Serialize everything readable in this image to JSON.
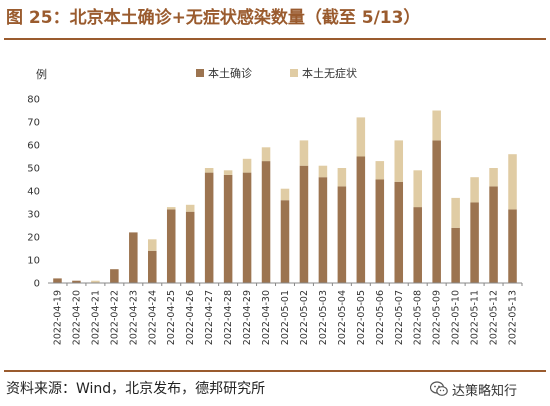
{
  "title": "图 25：北京本土确诊+无症状感染数量（截至 5/13）",
  "source": "资料来源：Wind，北京发布，德邦研究所",
  "watermark": "达策略知行",
  "chart_data": {
    "type": "bar",
    "stacked": true,
    "unit_label": "例",
    "categories": [
      "2022-04-19",
      "2022-04-20",
      "2022-04-21",
      "2022-04-22",
      "2022-04-23",
      "2022-04-24",
      "2022-04-25",
      "2022-04-26",
      "2022-04-27",
      "2022-04-28",
      "2022-04-29",
      "2022-04-30",
      "2022-05-01",
      "2022-05-02",
      "2022-05-03",
      "2022-05-04",
      "2022-05-05",
      "2022-05-06",
      "2022-05-07",
      "2022-05-08",
      "2022-05-09",
      "2022-05-10",
      "2022-05-11",
      "2022-05-12",
      "2022-05-13"
    ],
    "series": [
      {
        "name": "本土确诊",
        "color": "#9c7450",
        "values": [
          2,
          1,
          0,
          6,
          22,
          14,
          32,
          31,
          48,
          47,
          48,
          53,
          36,
          51,
          46,
          42,
          55,
          45,
          44,
          33,
          62,
          24,
          35,
          42,
          32
        ]
      },
      {
        "name": "本土无症状",
        "color": "#e0cca4",
        "values": [
          0,
          0,
          1,
          0,
          0,
          5,
          1,
          3,
          2,
          2,
          6,
          6,
          5,
          11,
          5,
          8,
          17,
          8,
          18,
          16,
          13,
          13,
          11,
          8,
          24
        ]
      }
    ],
    "ylim": [
      0,
      80
    ],
    "yticks": [
      0,
      10,
      20,
      30,
      40,
      50,
      60,
      70,
      80
    ],
    "legend_position": "top-center",
    "grid": false
  }
}
